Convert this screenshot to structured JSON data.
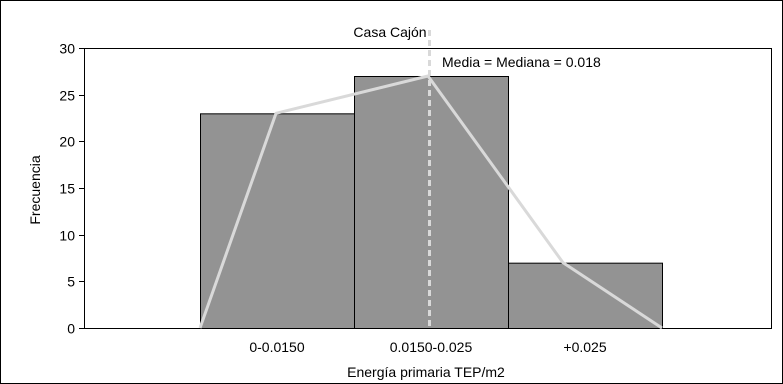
{
  "chart_data": {
    "type": "bar",
    "title": "Casa Cajón",
    "xlabel": "Energía primaria TEP/m2",
    "ylabel": "Frecuencia",
    "ylim": [
      0,
      30
    ],
    "yticks": [
      0,
      5,
      10,
      15,
      20,
      25,
      30
    ],
    "categories": [
      "0-0.0150",
      "0.0150-0.025",
      "+0.025"
    ],
    "values": [
      23,
      27,
      7
    ],
    "frequency_polygon": {
      "points": [
        {
          "x": "start",
          "y": 0
        },
        {
          "x": "0-0.0150",
          "y": 23
        },
        {
          "x": "0.0150-0.025",
          "y": 27
        },
        {
          "x": "+0.025",
          "y": 7
        },
        {
          "x": "end",
          "y": 0
        }
      ]
    },
    "reference_line": {
      "label": "Media = Mediana = 0.018",
      "value": 0.018,
      "style": "dashed"
    },
    "grid": false,
    "legend": "none",
    "colors": {
      "bar_fill": "#939393",
      "bar_stroke": "#000000",
      "polygon": "#d9d9d9",
      "reference_line": "#d9d9d9",
      "frame": "#000000"
    }
  }
}
